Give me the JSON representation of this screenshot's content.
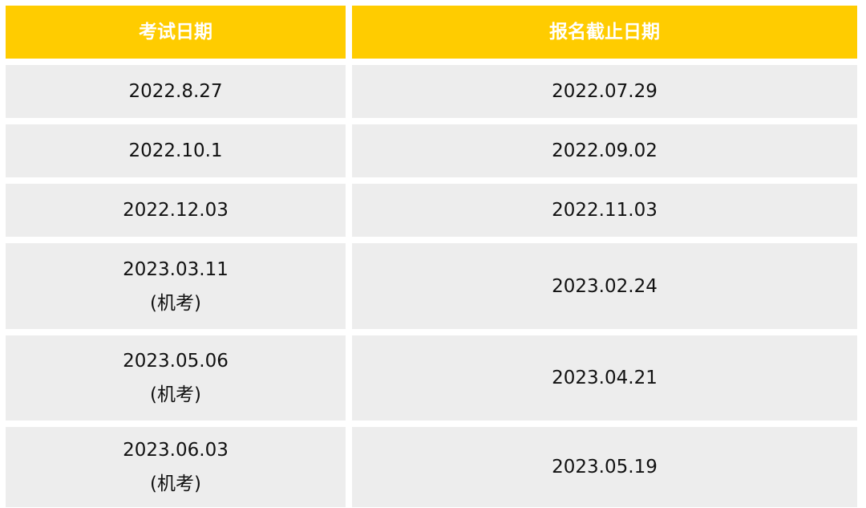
{
  "colors": {
    "header_bg": "#FFCC00",
    "header_text": "#FFFFFF",
    "row_bg": "#EDEDED"
  },
  "table": {
    "headers": [
      "考试日期",
      "报名截止日期"
    ],
    "rows": [
      {
        "exam": [
          "2022.8.27"
        ],
        "deadline": "2022.07.29"
      },
      {
        "exam": [
          "2022.10.1"
        ],
        "deadline": "2022.09.02"
      },
      {
        "exam": [
          "2022.12.03"
        ],
        "deadline": "2022.11.03"
      },
      {
        "exam": [
          "2023.03.11",
          "(机考)"
        ],
        "deadline": "2023.02.24"
      },
      {
        "exam": [
          "2023.05.06",
          "(机考)"
        ],
        "deadline": "2023.04.21"
      },
      {
        "exam": [
          "2023.06.03",
          "(机考)"
        ],
        "deadline": "2023.05.19"
      }
    ]
  }
}
